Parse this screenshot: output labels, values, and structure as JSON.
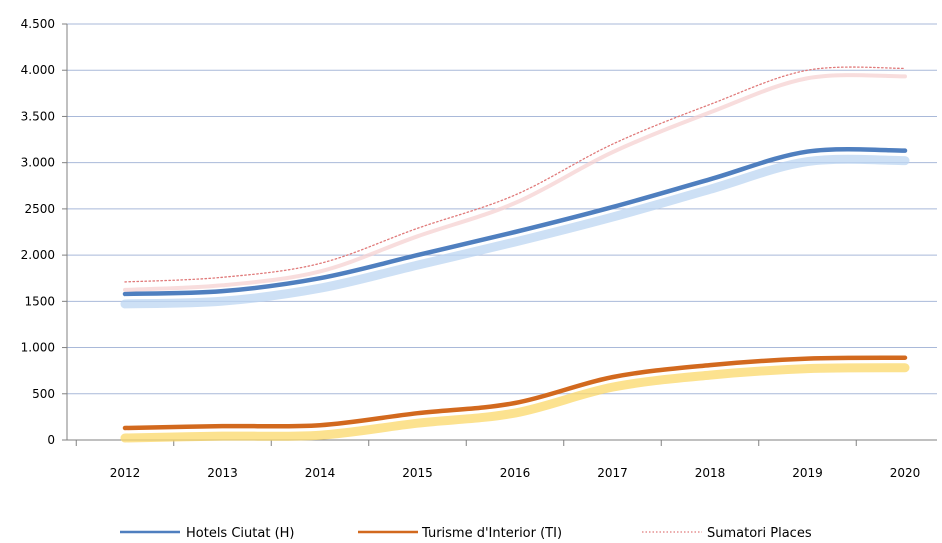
{
  "chart_data": {
    "type": "line",
    "title": "",
    "xlabel": "",
    "ylabel": "",
    "categories": [
      "2012",
      "2013",
      "2014",
      "2015",
      "2016",
      "2017",
      "2018",
      "2019",
      "2020"
    ],
    "ylim": [
      0,
      4500
    ],
    "yticks": [
      0,
      500,
      1000,
      1500,
      2000,
      2500,
      3000,
      3500,
      4000,
      4500
    ],
    "ytick_labels": [
      "0",
      "500",
      "1.000",
      "1500",
      "2.000",
      "2500",
      "3.000",
      "3.500",
      "4.000",
      "4.500"
    ],
    "grid": "horizontal",
    "legend_position": "bottom",
    "series": [
      {
        "name": "Hotels Ciutat (H)",
        "color": "#4f7fbf",
        "style": "solid-thick",
        "values": [
          1580,
          1610,
          1750,
          2000,
          2250,
          2520,
          2820,
          3120,
          3130
        ]
      },
      {
        "name": "Turisme d'Interior (TI)",
        "color": "#d2691e",
        "style": "solid-thick",
        "values": [
          130,
          150,
          160,
          290,
          400,
          680,
          810,
          880,
          890
        ]
      },
      {
        "name": "Sumatori Places",
        "color": "#e07a7a",
        "style": "dotted",
        "values": [
          1710,
          1760,
          1910,
          2290,
          2650,
          3200,
          3630,
          4000,
          4020
        ]
      }
    ]
  }
}
